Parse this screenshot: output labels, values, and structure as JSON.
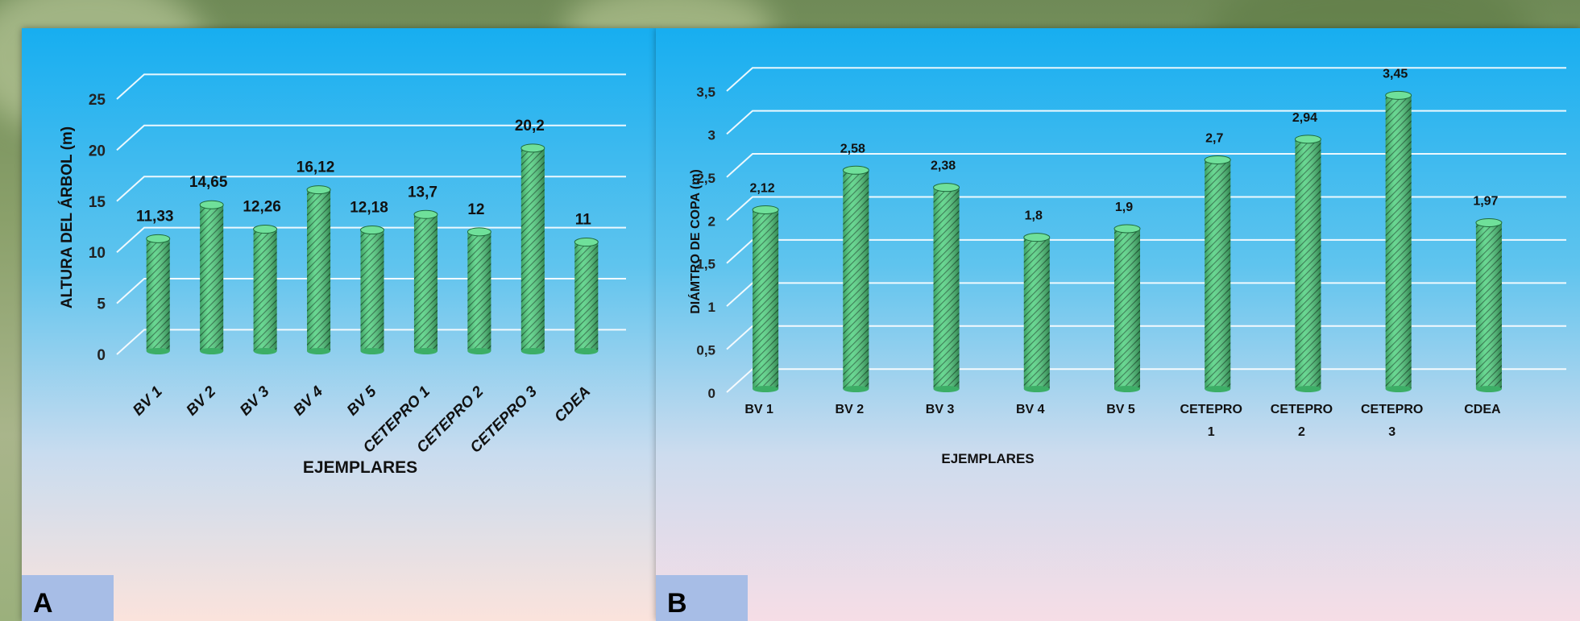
{
  "panels": [
    {
      "label": "A",
      "chart_data": {
        "type": "bar",
        "categories": [
          "BV 1",
          "BV 2",
          "BV 3",
          "BV 4",
          "BV 5",
          "CETEPRO 1",
          "CETEPRO 2",
          "CETEPRO 3",
          "CDEA"
        ],
        "values": [
          11.33,
          14.65,
          12.26,
          16.12,
          12.18,
          13.7,
          12,
          20.2,
          11
        ],
        "data_labels": [
          "11,33",
          "14,65",
          "12,26",
          "16,12",
          "12,18",
          "13,7",
          "12",
          "20,2",
          "11"
        ],
        "title": "",
        "xlabel": "EJEMPLARES",
        "ylabel": "ALTURA DEL ÁRBOL (m)",
        "ylim": [
          0,
          25
        ],
        "yticks": [
          0,
          5,
          10,
          15,
          20,
          25
        ],
        "ytick_labels": [
          "0",
          "5",
          "10",
          "15",
          "20",
          "25"
        ],
        "xtick_rotation": "rotated",
        "grid": true,
        "bar_color": "#4fd17f"
      }
    },
    {
      "label": "B",
      "chart_data": {
        "type": "bar",
        "categories": [
          "BV 1",
          "BV 2",
          "BV 3",
          "BV 4",
          "BV 5",
          "CETEPRO 1",
          "CETEPRO 2",
          "CETEPRO 3",
          "CDEA"
        ],
        "values": [
          2.12,
          2.58,
          2.38,
          1.8,
          1.9,
          2.7,
          2.94,
          3.45,
          1.97
        ],
        "data_labels": [
          "2,12",
          "2,58",
          "2,38",
          "1,8",
          "1,9",
          "2,7",
          "2,94",
          "3,45",
          "1,97"
        ],
        "title": "",
        "xlabel": "EJEMPLARES",
        "ylabel": "DIÁMTRO DE COPA (m)",
        "ylim": [
          0,
          3.5
        ],
        "yticks": [
          0,
          0.5,
          1,
          1.5,
          2,
          2.5,
          3,
          3.5
        ],
        "ytick_labels": [
          "0",
          "0,5",
          "1",
          "1,5",
          "2",
          "2,5",
          "3",
          "3,5"
        ],
        "xtick_rotation": "horizontal",
        "grid": true,
        "bar_color": "#4fd17f"
      }
    }
  ],
  "colors": {
    "panel_top": "#17aef0",
    "panel_bottom": "#fbe3dc",
    "bar": "#4fd17f",
    "bar_hatch": "#1f6b3c",
    "label_box": "#a7bde6"
  }
}
